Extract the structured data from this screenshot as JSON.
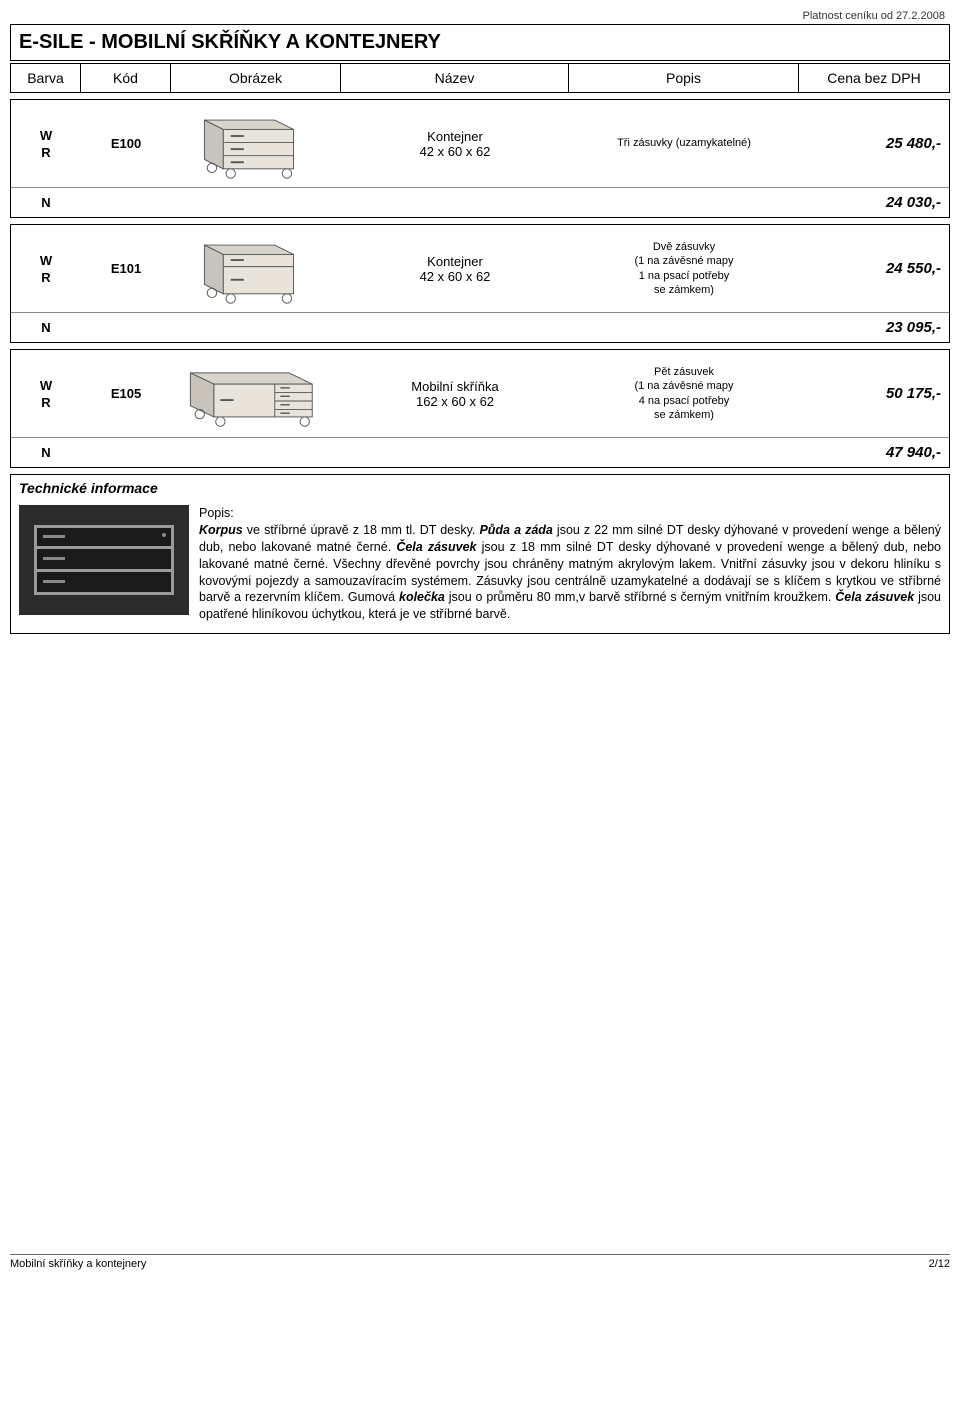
{
  "validity": "Platnost ceníku od 27.2.2008",
  "title": "E-SILE - MOBILNÍ SKŘÍŇKY A KONTEJNERY",
  "headers": {
    "barva": "Barva",
    "kod": "Kód",
    "obrazek": "Obrázek",
    "nazev": "Název",
    "popis": "Popis",
    "cena": "Cena bez DPH"
  },
  "products": [
    {
      "variants_top": [
        "W",
        "R"
      ],
      "variant_bottom": "N",
      "code": "E100",
      "name": "Kontejner",
      "dims": "42 x 60 x 62",
      "desc": "Tři zásuvky (uzamykatelné)",
      "price_top": "25 480,-",
      "price_bottom": "24 030,-"
    },
    {
      "variants_top": [
        "W",
        "R"
      ],
      "variant_bottom": "N",
      "code": "E101",
      "name": "Kontejner",
      "dims": "42 x 60 x 62",
      "desc": "Dvě zásuvky\n(1 na závěsné mapy\n1 na psací potřeby\nse zámkem)",
      "price_top": "24 550,-",
      "price_bottom": "23 095,-"
    },
    {
      "variants_top": [
        "W",
        "R"
      ],
      "variant_bottom": "N",
      "code": "E105",
      "name": "Mobilní skříňka",
      "dims": "162 x 60 x 62",
      "desc": "Pět zásuvek\n(1 na závěsné mapy\n4 na psací potřeby\nse zámkem)",
      "price_top": "50 175,-",
      "price_bottom": "47 940,-"
    }
  ],
  "tech": {
    "title": "Technické informace",
    "label": "Popis:",
    "text": "Korpus ve stříbrné úpravě z 18 mm tl. DT desky. Půda a záda jsou z 22 mm silné DT desky dýhované v provedení wenge a bělený dub, nebo lakované matné černé. Čela zásuvek jsou z 18 mm silné DT desky dýhované v provedení wenge a bělený dub, nebo lakované matné černé. Všechny dřevěné povrchy jsou chráněny matným akrylovým lakem. Vnitřní zásuvky jsou v dekoru hliníku s kovovými pojezdy a samouzavíracím systémem. Zásuvky jsou centrálně uzamykatelné a dodávají se s klíčem s krytkou ve stříbrné barvě a rezervním klíčem. Gumová kolečka jsou o průměru 80 mm,v barvě stříbrné s černým vnitřním kroužkem. Čela zásuvek jsou opatřené hliníkovou úchytkou, která je ve stříbrné barvě."
  },
  "footer": {
    "left": "Mobilní skříňky a kontejnery",
    "right": "2/12"
  }
}
